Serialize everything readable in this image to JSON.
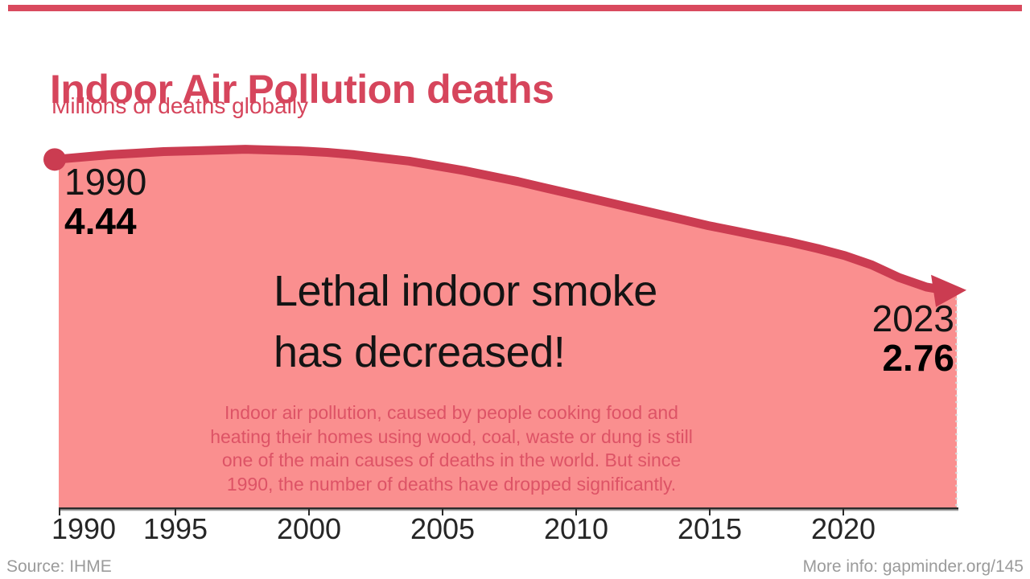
{
  "accent": {
    "brand_red": "#d6455c",
    "line_red": "#cb3c51",
    "fill_salmon": "#fa8f8f",
    "note_red": "#dd5366",
    "axis_dark": "#2b2b2b",
    "footer_gray": "#9b9b9b"
  },
  "header": {
    "title": "Indoor Air Pollution deaths",
    "subtitle": "Millions of deaths globally"
  },
  "annotations": {
    "start": {
      "year": "1990",
      "value": "4.44"
    },
    "end": {
      "year": "2023",
      "value": "2.76"
    },
    "headline_lines": [
      "Lethal indoor smoke",
      "has decreased!"
    ],
    "note_lines": [
      "Indoor air pollution, caused by people cooking food and",
      "heating their homes using wood, coal, waste or dung is still",
      "one of the main causes of deaths in the world. But since",
      "1990, the number of deaths have dropped significantly."
    ]
  },
  "footer": {
    "source": "Source: IHME",
    "more_info": "More info: gapminder.org/145"
  },
  "chart_data": {
    "type": "area",
    "title": "Indoor Air Pollution deaths",
    "subtitle": "Millions of deaths globally",
    "unit": "millions of deaths globally",
    "x": [
      1990,
      1991,
      1992,
      1993,
      1994,
      1995,
      1996,
      1997,
      1998,
      1999,
      2000,
      2001,
      2002,
      2003,
      2004,
      2005,
      2006,
      2007,
      2008,
      2009,
      2010,
      2011,
      2012,
      2013,
      2014,
      2015,
      2016,
      2017,
      2018,
      2019,
      2020,
      2021,
      2022,
      2023
    ],
    "values": [
      4.44,
      4.47,
      4.5,
      4.52,
      4.54,
      4.55,
      4.56,
      4.57,
      4.56,
      4.55,
      4.53,
      4.5,
      4.46,
      4.42,
      4.36,
      4.3,
      4.23,
      4.16,
      4.08,
      4.0,
      3.92,
      3.84,
      3.76,
      3.68,
      3.6,
      3.53,
      3.46,
      3.39,
      3.31,
      3.22,
      3.1,
      2.94,
      2.82,
      2.76
    ],
    "x_tick_labels": [
      "1990",
      "1995",
      "2000",
      "2005",
      "2010",
      "2015",
      "2020"
    ],
    "xlim": [
      1990,
      2023
    ],
    "ylim": [
      0,
      4.9
    ],
    "grid": false,
    "legend": false,
    "start_point_label": {
      "year": 1990,
      "value": 4.44
    },
    "end_point_label": {
      "year": 2023,
      "value": 2.76
    }
  }
}
